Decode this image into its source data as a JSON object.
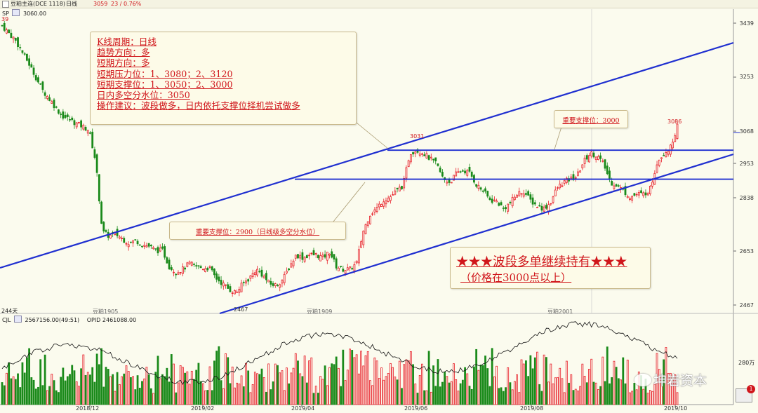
{
  "topbar": {
    "title": "豆粕主连(DCE 1118)",
    "period": "日线",
    "price": "3059",
    "change": "23 / 0.76%"
  },
  "indicator": {
    "sp_label": "SP",
    "sp_value": "3060.00",
    "sp_sub": "39",
    "days_label": "244天"
  },
  "vol_panel": {
    "label": "CJL",
    "values": "2567156.00(49:51)",
    "opid": "OPID 2461088.00",
    "unit_label": "280万"
  },
  "annotation": {
    "lines": [
      "K线周期：日线",
      "趋势方向：多",
      "短期方向：多",
      "短期压力位：1、3080；2、3120",
      "短期支撑位：1、3050；2、3000",
      "日内多空分水位：3050",
      "操作建议：波段做多，日内依托支撑位择机尝试做多"
    ]
  },
  "callouts": {
    "support_3000": "重要支撑位：3000",
    "support_2900": "重要支撑位：2900（日线级多空分水位）",
    "hold_line1": "★★★波段多单继续持有★★★",
    "hold_line2": "（价格在3000点以上）"
  },
  "price_labels": {
    "high_3031": "3031",
    "last_3086": "3086",
    "low_2467": "2467"
  },
  "contract_marks": [
    "豆粕1905",
    "豆粕1909",
    "豆粕2001"
  ],
  "watermark": "坤岩资本",
  "notify_count": "1",
  "colors": {
    "up": "#e8202a",
    "down": "#1a8a1a",
    "trendline": "#1f2fd0",
    "annotation_text": "#d0161b",
    "background": "#fbfbee"
  },
  "chart_data": {
    "type": "candlestick",
    "title": "",
    "xlabel": "",
    "ylabel": "",
    "ylim": [
      2400,
      3480
    ],
    "y_ticks": [
      3439,
      3253,
      3068,
      2953,
      2838,
      2653,
      2467
    ],
    "x_ticks": [
      "2018/12",
      "2019/02",
      "2019/04",
      "2019/06",
      "2019/08",
      "2019/10"
    ],
    "close_series": [
      3430,
      3405,
      3380,
      3340,
      3300,
      3255,
      3210,
      3180,
      3150,
      3120,
      3110,
      3095,
      3085,
      3072,
      2960,
      2720,
      2705,
      2712,
      2695,
      2680,
      2690,
      2675,
      2670,
      2655,
      2655,
      2600,
      2580,
      2590,
      2610,
      2600,
      2595,
      2595,
      2560,
      2540,
      2520,
      2510,
      2540,
      2560,
      2590,
      2570,
      2540,
      2535,
      2555,
      2600,
      2640,
      2630,
      2640,
      2640,
      2630,
      2650,
      2600,
      2590,
      2590,
      2610,
      2720,
      2780,
      2800,
      2830,
      2840,
      2860,
      2880,
      2990,
      3000,
      2990,
      2970,
      2950,
      2900,
      2890,
      2920,
      2930,
      2920,
      2880,
      2860,
      2830,
      2825,
      2800,
      2820,
      2850,
      2860,
      2830,
      2810,
      2800,
      2820,
      2870,
      2890,
      2900,
      2910,
      2960,
      2990,
      2980,
      2950,
      2890,
      2880,
      2860,
      2840,
      2850,
      2850,
      2870,
      2960,
      2990,
      3010,
      3086
    ],
    "close_x_range": [
      "2018/11",
      "2019/10"
    ],
    "support_lines": [
      {
        "name": "重要支撑位：3000",
        "value": 3000
      },
      {
        "name": "重要支撑位：2900",
        "value": 2900
      }
    ],
    "volume_unit": "280万",
    "open_interest_line": true,
    "grid": false
  }
}
